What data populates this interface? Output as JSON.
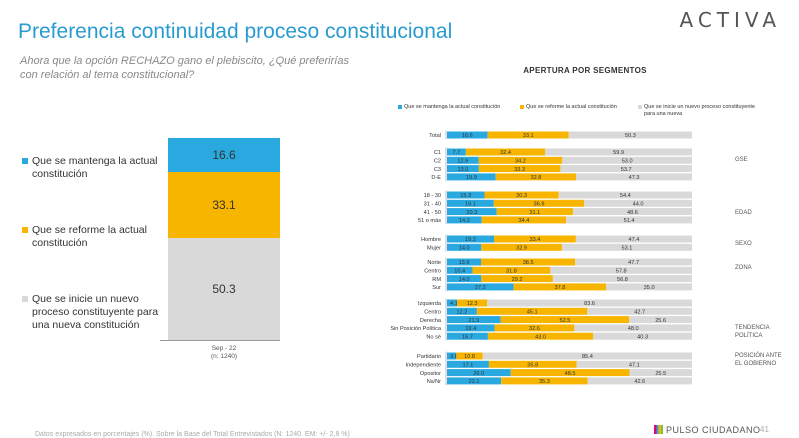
{
  "page": {
    "title": "Preferencia continuidad proceso constitucional",
    "logo": "ACTIVA",
    "question": "Ahora que la opción RECHAZO gano el plebiscito, ¿Qué preferirías con relación al tema constitucional?",
    "footnote": "Datos expresados en porcentajes (%). Sobre la Base del Total Entrevistados (N: 1240. EM: +/- 2,8 %)",
    "brand": "PULSO CIUDADANO",
    "page_number": "41",
    "right_title": "APERTURA POR SEGMENTOS"
  },
  "colors": {
    "blue": "#29a9e0",
    "yellow": "#f7b500",
    "gray": "#d9d9d9"
  },
  "chart_data": [
    {
      "type": "bar",
      "stacked": true,
      "categories": [
        "Sep - 22 (n: 1240)"
      ],
      "category_label_line1": "Sep - 22",
      "category_label_line2": "(n: 1240)",
      "series": [
        {
          "name": "Que se mantenga la actual constitución",
          "values": [
            16.6
          ]
        },
        {
          "name": "Que se reforme la actual constitución",
          "values": [
            33.1
          ]
        },
        {
          "name": "Que se inicie un nuevo proceso constituyente para una nueva constitución",
          "values": [
            50.3
          ]
        }
      ],
      "ylim": [
        0,
        100
      ]
    },
    {
      "type": "bar",
      "orientation": "horizontal",
      "stacked": true,
      "title": "APERTURA POR SEGMENTOS",
      "legend": [
        "Que se mantenga la actual constitución",
        "Que se reforme la actual constitución",
        "Que se inicie un nuevo proceso constituyente para una nueva"
      ],
      "groups": [
        {
          "name": "",
          "rows": [
            {
              "label": "Total",
              "values": [
                16.6,
                33.1,
                50.3
              ]
            }
          ]
        },
        {
          "name": "GSE",
          "rows": [
            {
              "label": "C1",
              "values": [
                7.7,
                32.4,
                59.9
              ]
            },
            {
              "label": "C2",
              "values": [
                12.9,
                34.2,
                53.0
              ]
            },
            {
              "label": "C3",
              "values": [
                13.0,
                33.3,
                53.7
              ]
            },
            {
              "label": "D-E",
              "values": [
                19.9,
                32.8,
                47.3
              ]
            }
          ]
        },
        {
          "name": "EDAD",
          "rows": [
            {
              "label": "18 - 30",
              "values": [
                15.3,
                30.3,
                54.4
              ]
            },
            {
              "label": "31 - 40",
              "values": [
                19.1,
                36.9,
                44.0
              ]
            },
            {
              "label": "41 - 50",
              "values": [
                20.3,
                31.1,
                48.6
              ]
            },
            {
              "label": "51 o más",
              "values": [
                14.2,
                34.4,
                51.4
              ]
            }
          ]
        },
        {
          "name": "SEXO",
          "rows": [
            {
              "label": "Hombre",
              "values": [
                19.2,
                33.4,
                47.4
              ]
            },
            {
              "label": "Mujer",
              "values": [
                14.0,
                32.9,
                53.1
              ]
            }
          ]
        },
        {
          "name": "ZONA",
          "rows": [
            {
              "label": "Norte",
              "values": [
                13.9,
                38.5,
                47.7
              ]
            },
            {
              "label": "Centro",
              "values": [
                10.4,
                31.8,
                57.8
              ]
            },
            {
              "label": "RM",
              "values": [
                14.0,
                29.2,
                56.8
              ]
            },
            {
              "label": "Sur",
              "values": [
                27.2,
                37.8,
                35.0
              ]
            }
          ]
        },
        {
          "name": "TENDENCIA POLÍTICA",
          "rows": [
            {
              "label": "Izquierda",
              "values": [
                4.1,
                12.3,
                83.6
              ]
            },
            {
              "label": "Centro",
              "values": [
                12.2,
                45.1,
                42.7
              ]
            },
            {
              "label": "Derecha",
              "values": [
                21.9,
                52.5,
                25.6
              ]
            },
            {
              "label": "Sin Posición Política",
              "values": [
                19.4,
                32.6,
                48.0
              ]
            },
            {
              "label": "No sé",
              "values": [
                16.7,
                43.0,
                40.3
              ]
            }
          ]
        },
        {
          "name": "POSICIÓN ANTE EL GOBIERNO",
          "rows": [
            {
              "label": "Partidario",
              "values": [
                3.8,
                10.8,
                85.4
              ]
            },
            {
              "label": "Independiente",
              "values": [
                17.1,
                35.8,
                47.1
              ]
            },
            {
              "label": "Opositor",
              "values": [
                26.0,
                48.5,
                25.5
              ]
            },
            {
              "label": "Ns/Nr",
              "values": [
                22.1,
                35.3,
                42.6
              ]
            }
          ]
        }
      ],
      "xlim": [
        0,
        100
      ]
    }
  ]
}
